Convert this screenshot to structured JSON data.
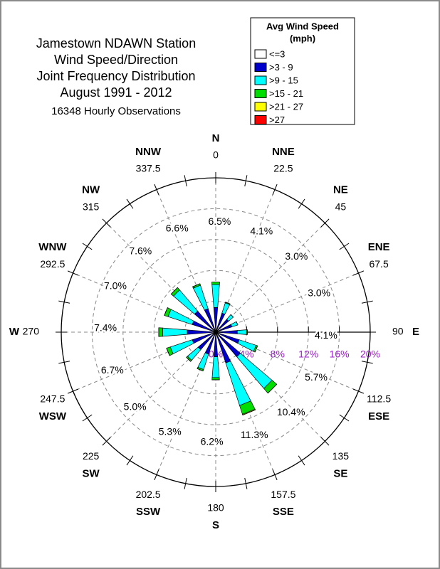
{
  "chart_data": {
    "type": "windrose",
    "title": [
      "Jamestown NDAWN Station",
      "Wind Speed/Direction",
      "Joint Frequency Distribution",
      "August 1991 - 2012"
    ],
    "subtitle": "16348 Hourly Observations",
    "legend_title": [
      "Avg Wind Speed",
      "(mph)"
    ],
    "categories": [
      "N",
      "NNE",
      "NE",
      "ENE",
      "E",
      "ESE",
      "SE",
      "SSE",
      "S",
      "SSW",
      "SW",
      "WSW",
      "W",
      "WNW",
      "NW",
      "NNW"
    ],
    "degrees": [
      0,
      22.5,
      45,
      67.5,
      90,
      112.5,
      135,
      157.5,
      180,
      202.5,
      225,
      247.5,
      270,
      292.5,
      315,
      337.5
    ],
    "total_labels": [
      "6.5%",
      "4.1%",
      "3.0%",
      "3.0%",
      "4.1%",
      "5.7%",
      "10.4%",
      "11.3%",
      "6.2%",
      "5.3%",
      "5.0%",
      "6.7%",
      "7.4%",
      "7.0%",
      "7.6%",
      "6.6%"
    ],
    "series": [
      {
        "name": "<=3",
        "color": "#ffffff",
        "values": [
          0.2,
          0.2,
          0.2,
          0.2,
          0.2,
          0.2,
          0.2,
          0.2,
          0.2,
          0.2,
          0.2,
          0.2,
          0.2,
          0.2,
          0.2,
          0.2
        ]
      },
      {
        "name": ">3 - 9",
        "color": "#0000cc",
        "values": [
          3.0,
          2.4,
          2.0,
          2.0,
          2.6,
          3.0,
          4.0,
          4.0,
          3.0,
          2.8,
          2.8,
          3.0,
          3.5,
          3.0,
          3.4,
          3.0
        ]
      },
      {
        "name": ">9 - 15",
        "color": "#00ffff",
        "values": [
          3.0,
          1.4,
          0.8,
          0.8,
          1.2,
          2.3,
          5.4,
          5.8,
          2.7,
          2.1,
          1.8,
          3.0,
          3.2,
          3.3,
          3.6,
          3.2
        ]
      },
      {
        "name": ">15 - 21",
        "color": "#00dd00",
        "values": [
          0.3,
          0.1,
          0,
          0,
          0.1,
          0.2,
          0.8,
          1.2,
          0.3,
          0.2,
          0.2,
          0.5,
          0.5,
          0.5,
          0.4,
          0.2
        ]
      },
      {
        "name": ">21 - 27",
        "color": "#ffff00",
        "values": [
          0,
          0,
          0,
          0,
          0,
          0,
          0,
          0.1,
          0,
          0,
          0,
          0,
          0,
          0,
          0,
          0
        ]
      },
      {
        "name": ">27",
        "color": "#ff0000",
        "values": [
          0,
          0,
          0,
          0,
          0,
          0,
          0,
          0,
          0,
          0,
          0,
          0,
          0,
          0,
          0,
          0
        ]
      }
    ],
    "rlim": [
      0,
      20
    ],
    "rticks": [
      {
        "value": 0,
        "label": "0%"
      },
      {
        "value": 4,
        "label": "4%"
      },
      {
        "value": 8,
        "label": "8%"
      },
      {
        "value": 12,
        "label": "12%"
      },
      {
        "value": 16,
        "label": "16%"
      },
      {
        "value": 20,
        "label": "20%"
      }
    ],
    "grid": true
  }
}
